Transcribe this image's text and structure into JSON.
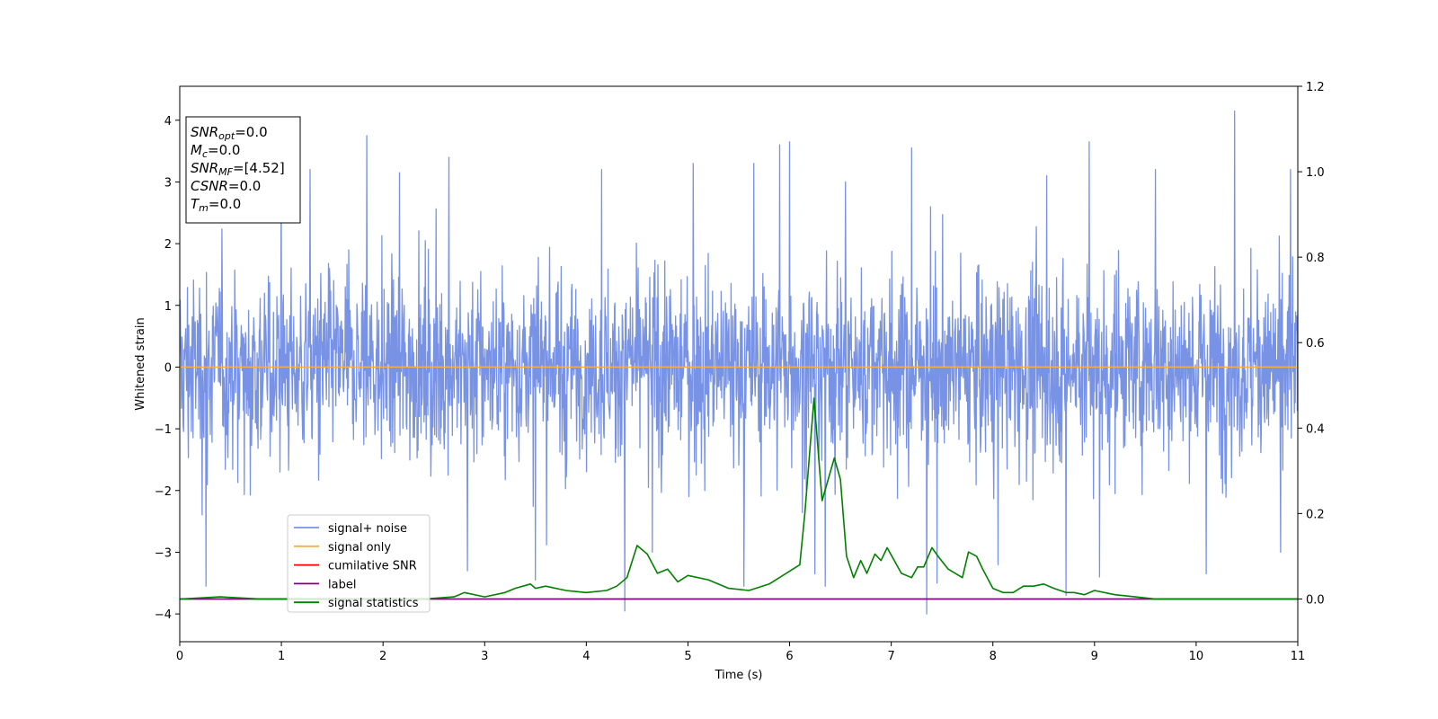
{
  "chart_data": {
    "type": "line",
    "title": "",
    "xlabel": "Time (s)",
    "ylabel": "Whitened strain",
    "xlim": [
      0,
      11
    ],
    "ylim": [
      -4.45,
      4.55
    ],
    "y2lim": [
      -0.1,
      1.2
    ],
    "grid": false,
    "legend_position": "lower-left",
    "x_ticks": [
      "0",
      "1",
      "2",
      "3",
      "4",
      "5",
      "6",
      "7",
      "8",
      "9",
      "10",
      "11"
    ],
    "y_ticks": [
      "−4",
      "−3",
      "−2",
      "−1",
      "0",
      "1",
      "2",
      "3",
      "4"
    ],
    "y2_ticks": [
      "0.0",
      "0.2",
      "0.4",
      "0.6",
      "0.8",
      "1.0",
      "1.2"
    ],
    "info_box": [
      {
        "symbol": "SNR",
        "subscript": "opt",
        "value": "=0.0"
      },
      {
        "symbol": "M",
        "subscript": "c",
        "value": "=0.0"
      },
      {
        "symbol": "SNR",
        "subscript": "MF",
        "value": "=[4.52]"
      },
      {
        "symbol": "CSNR",
        "subscript": "",
        "value": "=0.0"
      },
      {
        "symbol": "T",
        "subscript": "m",
        "value": "=0.0"
      }
    ],
    "series": [
      {
        "name": "signal+ noise",
        "color": "#7893e6",
        "axis": "left",
        "kind": "noise",
        "typical_amplitude": 0.9,
        "spikes": [
          [
            0.26,
            -3.55
          ],
          [
            1.0,
            3.0
          ],
          [
            1.28,
            3.2
          ],
          [
            1.84,
            3.75
          ],
          [
            2.16,
            3.15
          ],
          [
            2.65,
            3.4
          ],
          [
            2.83,
            -3.3
          ],
          [
            3.5,
            -3.45
          ],
          [
            4.15,
            3.2
          ],
          [
            4.38,
            -3.95
          ],
          [
            4.65,
            -3.0
          ],
          [
            5.05,
            3.3
          ],
          [
            5.55,
            -3.55
          ],
          [
            5.65,
            3.3
          ],
          [
            5.9,
            3.6
          ],
          [
            6.0,
            3.65
          ],
          [
            6.25,
            -3.35
          ],
          [
            6.35,
            -3.55
          ],
          [
            6.55,
            3.0
          ],
          [
            7.2,
            3.55
          ],
          [
            7.35,
            -4.0
          ],
          [
            7.45,
            -3.5
          ],
          [
            8.05,
            -3.2
          ],
          [
            8.53,
            3.1
          ],
          [
            8.72,
            -3.7
          ],
          [
            8.95,
            3.65
          ],
          [
            9.05,
            -3.4
          ],
          [
            9.6,
            3.2
          ],
          [
            10.1,
            -3.35
          ],
          [
            10.38,
            4.15
          ],
          [
            10.83,
            -3.0
          ],
          [
            10.93,
            3.2
          ]
        ]
      },
      {
        "name": "signal only",
        "color": "#f5b041",
        "axis": "left",
        "x": [
          0,
          11
        ],
        "y": [
          0,
          0
        ]
      },
      {
        "name": "cumilative SNR",
        "color": "#ff0000",
        "axis": "right",
        "x": [
          0,
          11
        ],
        "y": [
          0,
          0
        ]
      },
      {
        "name": "label",
        "color": "#800080",
        "axis": "right",
        "x": [
          0,
          11
        ],
        "y": [
          0,
          0
        ]
      },
      {
        "name": "signal statistics",
        "color": "#008000",
        "axis": "right",
        "x": [
          0,
          0.4,
          0.8,
          1.2,
          1.6,
          2.0,
          2.4,
          2.7,
          2.8,
          3.0,
          3.2,
          3.3,
          3.45,
          3.5,
          3.6,
          3.8,
          4.0,
          4.2,
          4.3,
          4.4,
          4.5,
          4.6,
          4.7,
          4.8,
          4.9,
          5.0,
          5.2,
          5.4,
          5.6,
          5.8,
          6.0,
          6.1,
          6.15,
          6.24,
          6.32,
          6.44,
          6.5,
          6.56,
          6.63,
          6.7,
          6.76,
          6.84,
          6.9,
          6.96,
          7.1,
          7.2,
          7.26,
          7.32,
          7.4,
          7.46,
          7.56,
          7.7,
          7.76,
          7.84,
          7.9,
          8.0,
          8.1,
          8.2,
          8.3,
          8.4,
          8.5,
          8.6,
          8.72,
          8.8,
          8.9,
          9.0,
          9.2,
          9.4,
          9.6,
          10.0,
          10.5,
          11.0
        ],
        "y": [
          0.0,
          0.005,
          0.0,
          0.0,
          0.0,
          0.0,
          0.0,
          0.005,
          0.015,
          0.005,
          0.015,
          0.025,
          0.035,
          0.025,
          0.03,
          0.02,
          0.015,
          0.02,
          0.03,
          0.05,
          0.125,
          0.105,
          0.06,
          0.07,
          0.04,
          0.055,
          0.045,
          0.025,
          0.02,
          0.035,
          0.065,
          0.08,
          0.2,
          0.47,
          0.23,
          0.33,
          0.28,
          0.1,
          0.05,
          0.09,
          0.06,
          0.105,
          0.09,
          0.12,
          0.06,
          0.05,
          0.075,
          0.075,
          0.12,
          0.1,
          0.07,
          0.05,
          0.11,
          0.1,
          0.07,
          0.025,
          0.015,
          0.015,
          0.03,
          0.03,
          0.035,
          0.025,
          0.015,
          0.015,
          0.01,
          0.02,
          0.01,
          0.005,
          0.0,
          0.0,
          0.0,
          0.0
        ]
      }
    ]
  }
}
